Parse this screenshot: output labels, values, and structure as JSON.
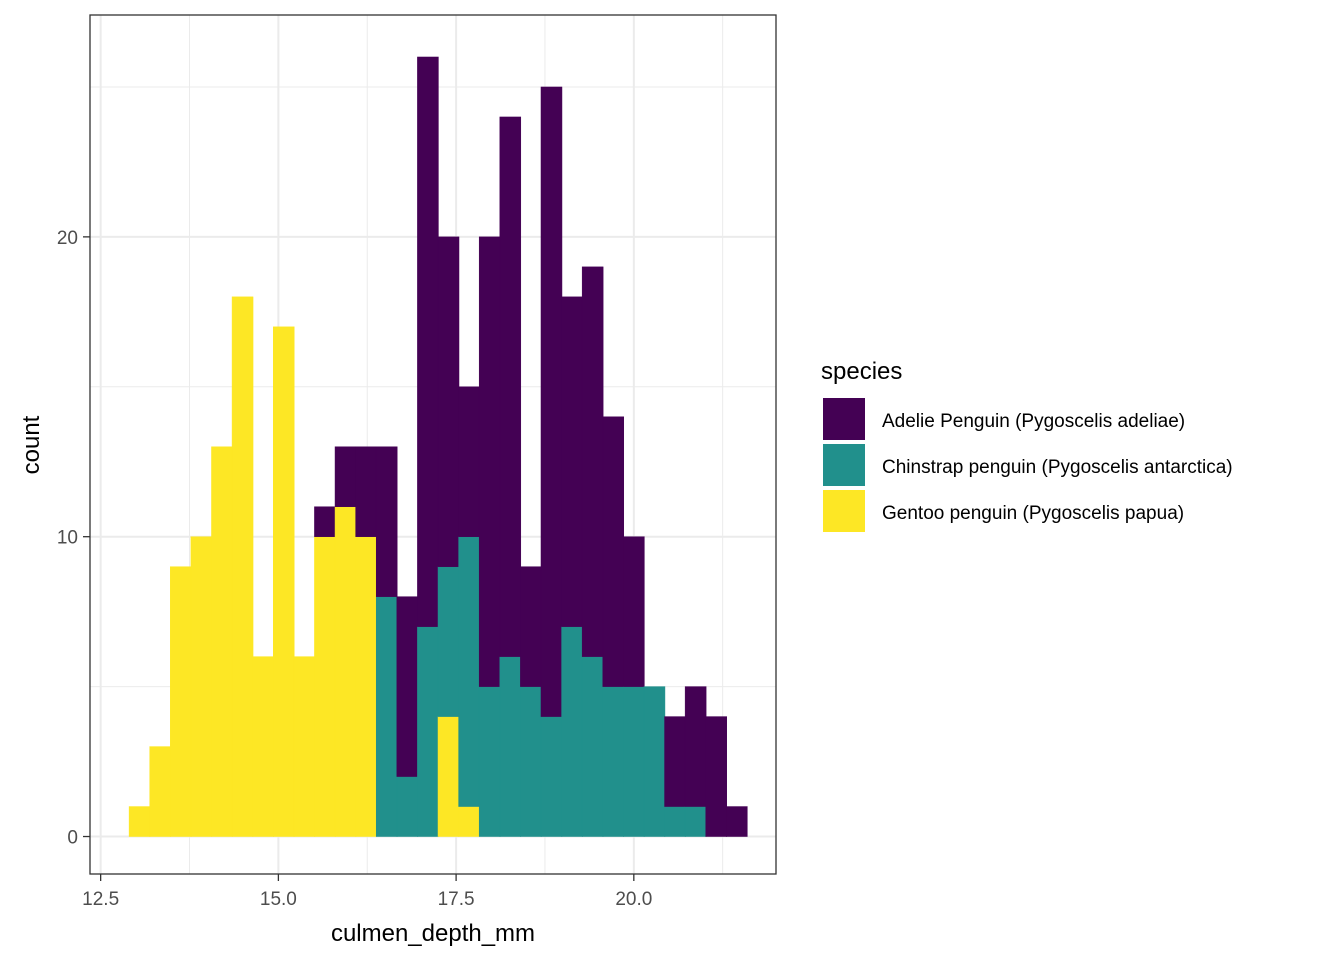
{
  "chart_data": {
    "type": "bar",
    "subtype": "stacked-histogram",
    "xlabel": "culmen_depth_mm",
    "ylabel": "count",
    "xlim": [
      12.35,
      22.0
    ],
    "ylim": [
      -1.25,
      27.4
    ],
    "x_ticks": [
      12.5,
      15.0,
      17.5,
      20.0
    ],
    "x_tick_labels": [
      "12.5",
      "15.0",
      "17.5",
      "20.0"
    ],
    "y_ticks": [
      0,
      10,
      20
    ],
    "y_tick_labels": [
      "0",
      "10",
      "20"
    ],
    "y_minor_gridlines": [
      5,
      15,
      25
    ],
    "x_minor_gridlines": [
      13.75,
      16.25,
      18.75,
      21.25
    ],
    "grid": true,
    "bin_width": 0.2897,
    "bin_start": 12.9,
    "stack_order_bottom_to_top": [
      "Gentoo penguin (Pygoscelis papua)",
      "Chinstrap penguin (Pygoscelis antarctica)",
      "Adelie Penguin (Pygoscelis adeliae)"
    ],
    "series": [
      {
        "name": "Gentoo penguin (Pygoscelis papua)",
        "color": "#FDE725",
        "values": [
          1,
          3,
          9,
          10,
          13,
          18,
          6,
          17,
          6,
          10,
          11,
          10,
          0,
          0,
          0,
          4,
          1,
          0,
          0,
          0,
          0,
          0,
          0,
          0,
          0,
          0,
          0,
          0,
          0,
          0
        ]
      },
      {
        "name": "Chinstrap penguin (Pygoscelis antarctica)",
        "color": "#21908C",
        "values": [
          0,
          0,
          0,
          0,
          0,
          0,
          0,
          0,
          0,
          0,
          0,
          0,
          8,
          2,
          7,
          5,
          9,
          5,
          6,
          5,
          4,
          7,
          6,
          5,
          5,
          5,
          1,
          1,
          0,
          0
        ]
      },
      {
        "name": "Adelie Penguin (Pygoscelis adeliae)",
        "color": "#440154",
        "values": [
          0,
          0,
          0,
          0,
          0,
          0,
          0,
          0,
          0,
          1,
          2,
          3,
          5,
          6,
          19,
          11,
          5,
          15,
          18,
          4,
          21,
          11,
          13,
          9,
          5,
          0,
          3,
          4,
          4,
          1
        ]
      }
    ],
    "legend": {
      "title": "species",
      "position": "right",
      "entries": [
        "Adelie Penguin (Pygoscelis adeliae)",
        "Chinstrap penguin (Pygoscelis antarctica)",
        "Gentoo penguin (Pygoscelis papua)"
      ]
    }
  }
}
